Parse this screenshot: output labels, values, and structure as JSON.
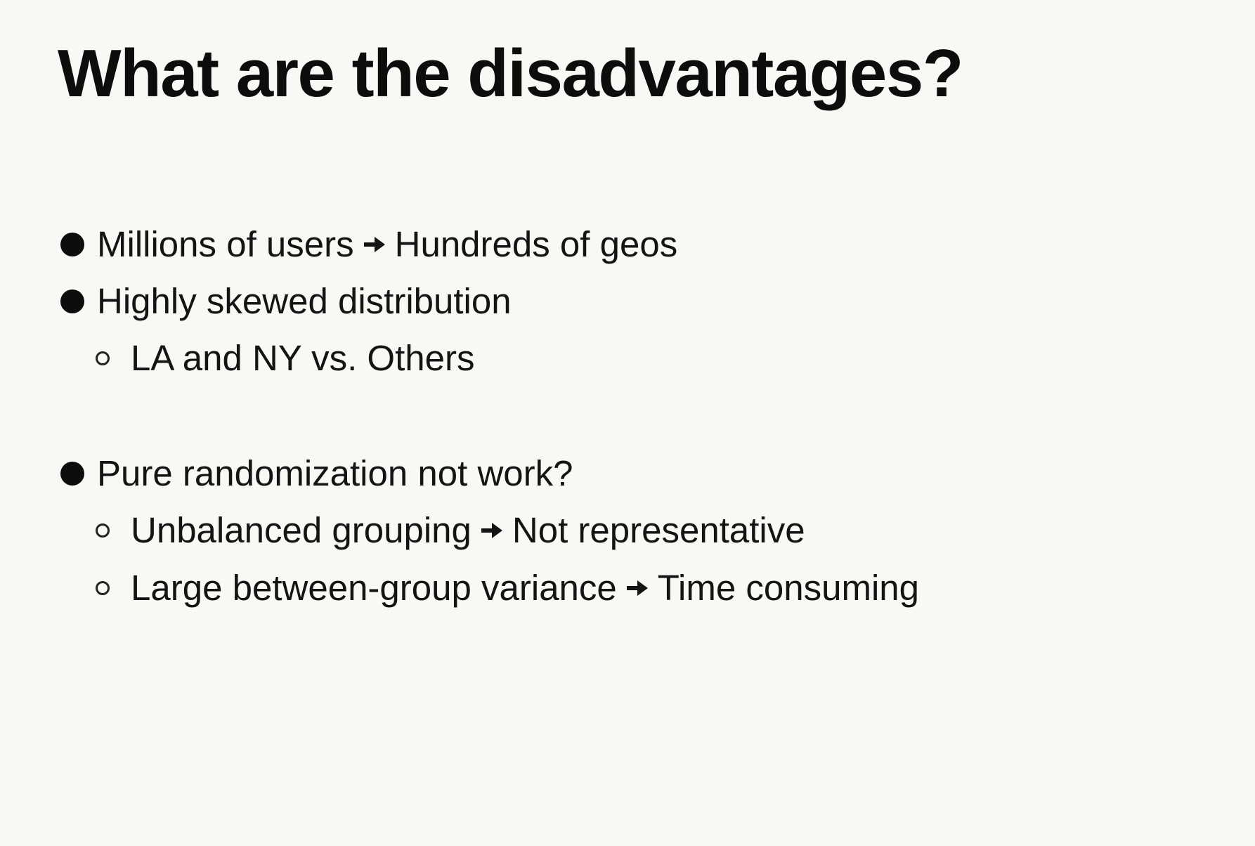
{
  "slide": {
    "title": "What are the disadvantages?",
    "bullets": [
      {
        "text_before": "Millions of users",
        "text_after": "Hundreds of geos",
        "icon": "arrow-right-icon"
      },
      {
        "text": "Highly skewed distribution",
        "sub": [
          {
            "text": "LA and NY vs. Others"
          }
        ]
      },
      {
        "text": "Pure randomization not work?",
        "sub": [
          {
            "text_before": "Unbalanced grouping",
            "text_after": "Not representative",
            "icon": "arrow-right-icon"
          },
          {
            "text_before": "Large between-group variance",
            "text_after": "Time consuming",
            "icon": "arrow-right-icon"
          }
        ]
      }
    ]
  },
  "colors": {
    "background": "#f9f8f4",
    "text": "#141414",
    "title": "#0d0d0d"
  }
}
